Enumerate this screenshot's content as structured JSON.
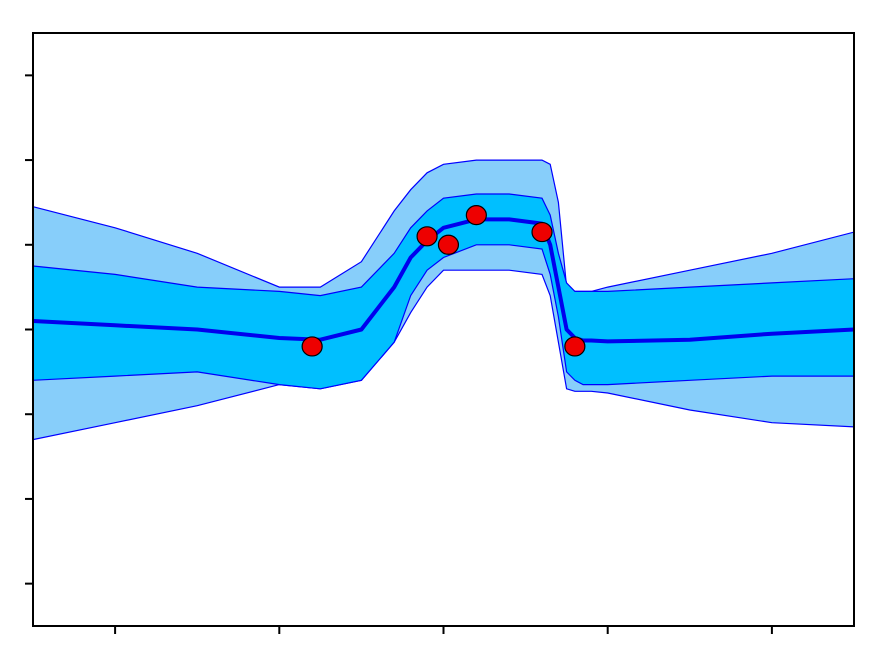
{
  "chart_data": {
    "type": "area",
    "title": "",
    "xlabel": "",
    "ylabel": "",
    "xlim": [
      -2.5,
      2.5
    ],
    "ylim": [
      -3.5,
      3.5
    ],
    "x_ticks": [
      -2,
      -1,
      0,
      1,
      2
    ],
    "y_ticks": [
      -3,
      -2,
      -1,
      0,
      1,
      2,
      3
    ],
    "tick_labels_visible": false,
    "grid": false,
    "legend": "none",
    "colors": {
      "mean": "#0000ee",
      "inner_band": "#00bfff",
      "outer_band": "#87cefa",
      "band_edge": "#0000ff",
      "points": "#ee0000",
      "point_edge": "#000000"
    },
    "mean_curve": {
      "x": [
        -2.5,
        -2.0,
        -1.5,
        -1.0,
        -0.75,
        -0.5,
        -0.3,
        -0.2,
        -0.1,
        0.0,
        0.2,
        0.4,
        0.6,
        0.65,
        0.7,
        0.75,
        0.8,
        0.85,
        0.9,
        1.0,
        1.5,
        2.0,
        2.5
      ],
      "y": [
        0.1,
        0.05,
        0.0,
        -0.1,
        -0.12,
        0.0,
        0.5,
        0.85,
        1.05,
        1.2,
        1.3,
        1.3,
        1.25,
        1.0,
        0.5,
        0.0,
        -0.1,
        -0.13,
        -0.13,
        -0.14,
        -0.12,
        -0.05,
        0.0
      ]
    },
    "inner_band": {
      "upper": [
        0.75,
        0.65,
        0.5,
        0.45,
        0.4,
        0.5,
        0.9,
        1.2,
        1.4,
        1.55,
        1.6,
        1.6,
        1.55,
        1.35,
        0.9,
        0.55,
        0.45,
        0.45,
        0.45,
        0.45,
        0.5,
        0.55,
        0.6
      ],
      "lower": [
        -0.6,
        -0.55,
        -0.5,
        -0.65,
        -0.7,
        -0.6,
        -0.15,
        0.4,
        0.7,
        0.85,
        1.0,
        1.0,
        0.95,
        0.65,
        0.15,
        -0.5,
        -0.6,
        -0.65,
        -0.65,
        -0.65,
        -0.6,
        -0.55,
        -0.55
      ]
    },
    "outer_band": {
      "upper": [
        1.45,
        1.2,
        0.9,
        0.5,
        0.5,
        0.8,
        1.4,
        1.65,
        1.85,
        1.95,
        2.0,
        2.0,
        2.0,
        1.95,
        1.5,
        0.5,
        0.45,
        0.45,
        0.45,
        0.5,
        0.7,
        0.9,
        1.15
      ],
      "lower": [
        -1.3,
        -1.1,
        -0.9,
        -0.65,
        -0.7,
        -0.6,
        -0.15,
        0.2,
        0.5,
        0.7,
        0.7,
        0.7,
        0.65,
        0.4,
        -0.15,
        -0.7,
        -0.73,
        -0.73,
        -0.73,
        -0.75,
        -0.95,
        -1.1,
        -1.15
      ]
    },
    "points": {
      "x": [
        -0.8,
        -0.1,
        0.03,
        0.2,
        0.6,
        0.8
      ],
      "y": [
        -0.2,
        1.1,
        1.0,
        1.35,
        1.15,
        -0.2
      ]
    }
  }
}
